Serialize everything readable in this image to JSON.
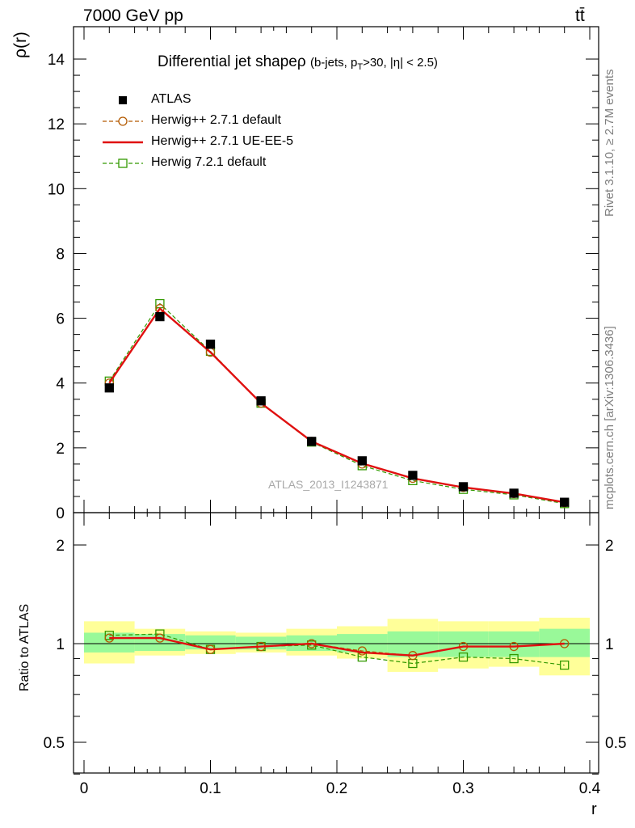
{
  "header": {
    "energy_label": "7000 GeV pp",
    "process_label": "tt̄",
    "title": "Differential jet shapeρ",
    "title_cut_prefix": "(b-jets, p",
    "title_cut_sub": "T",
    "title_cut_suffix": ">30, |η| < 2.5)",
    "watermark": "ATLAS_2013_I1243871",
    "side_text_1": "Rivet 3.1.10, ≥ 2.7M events",
    "side_text_2": "mcplots.cern.ch [arXiv:1306.3436]"
  },
  "colors": {
    "atlas": "#000000",
    "herwigpp_default": "#b35900",
    "herwigpp_ue": "#e01010",
    "herwig7": "#339900",
    "band_inner": "#99f999",
    "band_outer": "#ffff99"
  },
  "chart_data": [
    {
      "type": "scatter",
      "ylabel": "ρ(r)",
      "xlim": [
        0,
        0.4
      ],
      "ylim": [
        0,
        14.5
      ],
      "yticks": [
        0,
        2,
        4,
        6,
        8,
        10,
        12,
        14
      ],
      "legend_position": "top-left",
      "x": [
        0.02,
        0.06,
        0.1,
        0.14,
        0.18,
        0.22,
        0.26,
        0.3,
        0.34,
        0.38
      ],
      "series": [
        {
          "name": "ATLAS",
          "style": "black-square-markers",
          "values": [
            3.85,
            6.05,
            5.2,
            3.45,
            2.2,
            1.6,
            1.15,
            0.8,
            0.6,
            0.32
          ]
        },
        {
          "name": "Herwig++ 2.7.1 default",
          "style": "dashed-circle",
          "values": [
            4.0,
            6.3,
            4.95,
            3.38,
            2.2,
            1.5,
            1.06,
            0.78,
            0.59,
            0.31
          ]
        },
        {
          "name": "Herwig++ 2.7.1 UE-EE-5",
          "style": "solid-line",
          "values": [
            4.0,
            6.3,
            4.95,
            3.38,
            2.2,
            1.52,
            1.06,
            0.78,
            0.59,
            0.32
          ]
        },
        {
          "name": "Herwig 7.2.1 default",
          "style": "dashed-square",
          "values": [
            4.06,
            6.45,
            4.98,
            3.38,
            2.18,
            1.45,
            0.99,
            0.72,
            0.55,
            0.28
          ]
        }
      ]
    },
    {
      "type": "line",
      "ylabel": "Ratio to ATLAS",
      "xlabel": "r",
      "xlim": [
        0,
        0.4
      ],
      "ylim": [
        0.4,
        2.5
      ],
      "log_y": true,
      "yticks": [
        0.5,
        1,
        2
      ],
      "xticks": [
        0,
        0.1,
        0.2,
        0.3,
        0.4
      ],
      "x": [
        0.02,
        0.06,
        0.1,
        0.14,
        0.18,
        0.22,
        0.26,
        0.3,
        0.34,
        0.38
      ],
      "bin_edges": [
        0,
        0.04,
        0.08,
        0.12,
        0.16,
        0.2,
        0.24,
        0.28,
        0.32,
        0.36,
        0.4
      ],
      "band_inner": {
        "lo": [
          0.94,
          0.95,
          0.96,
          0.96,
          0.95,
          0.94,
          0.91,
          0.91,
          0.91,
          0.91
        ],
        "hi": [
          1.08,
          1.07,
          1.06,
          1.05,
          1.06,
          1.07,
          1.09,
          1.09,
          1.09,
          1.11
        ]
      },
      "band_outer": {
        "lo": [
          0.87,
          0.92,
          0.93,
          0.94,
          0.92,
          0.9,
          0.82,
          0.84,
          0.85,
          0.8
        ],
        "hi": [
          1.17,
          1.11,
          1.09,
          1.08,
          1.11,
          1.13,
          1.19,
          1.17,
          1.17,
          1.2
        ]
      },
      "series": [
        {
          "name": "Herwig++ 2.7.1 default",
          "values": [
            1.04,
            1.04,
            0.96,
            0.98,
            1.0,
            0.95,
            0.92,
            0.98,
            0.98,
            1.0
          ]
        },
        {
          "name": "Herwig++ 2.7.1 UE-EE-5",
          "values": [
            1.04,
            1.04,
            0.96,
            0.98,
            1.0,
            0.94,
            0.92,
            0.98,
            0.98,
            1.0
          ]
        },
        {
          "name": "Herwig 7.2.1 default",
          "values": [
            1.06,
            1.07,
            0.96,
            0.98,
            0.99,
            0.91,
            0.87,
            0.91,
            0.9,
            0.86
          ]
        }
      ]
    }
  ]
}
